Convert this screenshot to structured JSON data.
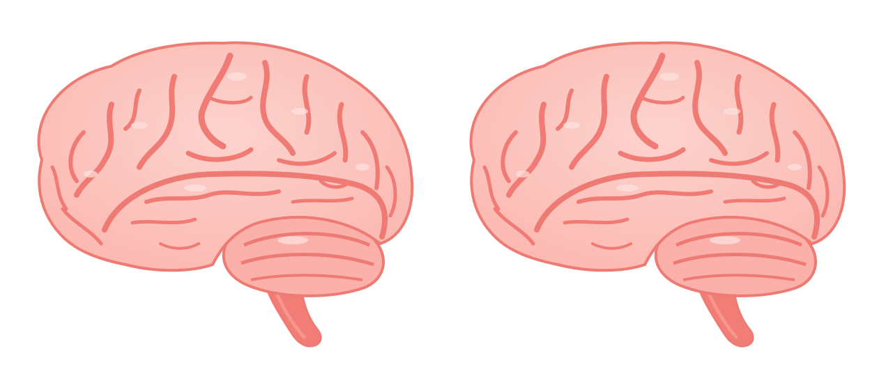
{
  "colors": {
    "background": "#ffffff",
    "sulcus": "#f07a74",
    "gyrus": "#fdbdb6",
    "highlight": "#fdd3ce",
    "outline": "#ee7a74",
    "stem": "#f27d76"
  },
  "figures": [
    {
      "subject": "brain-side-view",
      "facing": "left"
    },
    {
      "subject": "brain-side-view",
      "facing": "left"
    }
  ]
}
